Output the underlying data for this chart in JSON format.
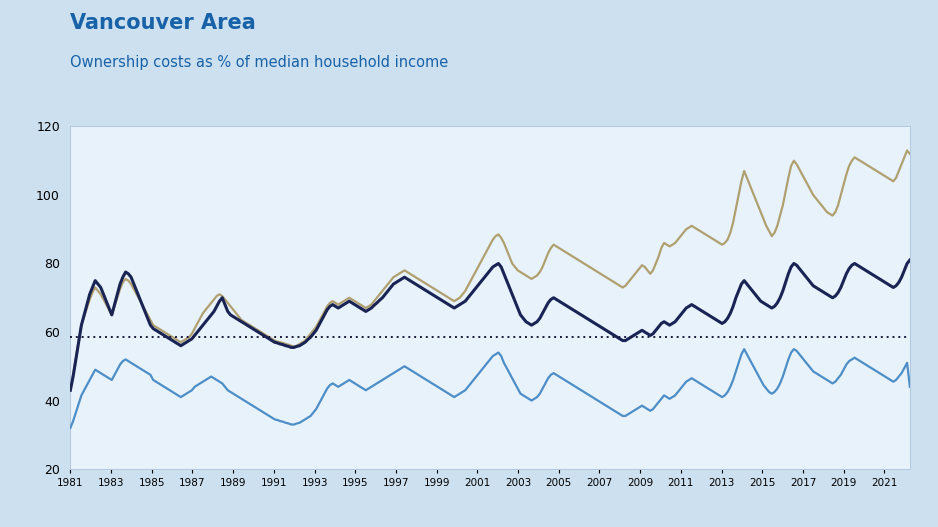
{
  "title": "Vancouver Area",
  "subtitle": "Ownership costs as % of median household income",
  "title_color": "#1862a8",
  "subtitle_color": "#1862a8",
  "fig_bg_color": "#cce0f0",
  "plot_bg_color": "#e8f2fb",
  "xmin": 1981.0,
  "xmax": 2022.25,
  "ymin": 20,
  "ymax": 120,
  "yticks": [
    20,
    40,
    60,
    80,
    100,
    120
  ],
  "reference_line": 58.5,
  "reference_color": "#1a1a3a",
  "line_navy_color": "#1a2454",
  "line_tan_color": "#b0a070",
  "line_blue_color": "#4d8ec7",
  "navy_lw": 2.2,
  "tan_lw": 1.6,
  "blue_lw": 1.6,
  "navy_data": [
    43.0,
    47.0,
    52.0,
    57.0,
    62.0,
    65.0,
    68.0,
    71.0,
    73.0,
    75.0,
    74.0,
    73.0,
    71.0,
    69.0,
    67.0,
    65.0,
    68.0,
    71.0,
    74.0,
    76.0,
    77.5,
    77.0,
    76.0,
    74.0,
    72.0,
    70.0,
    68.0,
    66.0,
    64.0,
    62.0,
    61.0,
    60.5,
    60.0,
    59.5,
    59.0,
    58.5,
    58.0,
    57.5,
    57.0,
    56.5,
    56.0,
    56.5,
    57.0,
    57.5,
    58.0,
    59.0,
    60.0,
    61.0,
    62.0,
    63.0,
    64.0,
    65.0,
    66.0,
    67.5,
    69.0,
    70.0,
    68.0,
    66.0,
    65.0,
    64.5,
    64.0,
    63.5,
    63.0,
    62.5,
    62.0,
    61.5,
    61.0,
    60.5,
    60.0,
    59.5,
    59.0,
    58.5,
    58.0,
    57.5,
    57.0,
    56.8,
    56.5,
    56.3,
    56.0,
    55.8,
    55.5,
    55.5,
    55.8,
    56.0,
    56.5,
    57.0,
    57.8,
    58.5,
    59.5,
    60.5,
    62.0,
    63.5,
    65.0,
    66.5,
    67.5,
    68.0,
    67.5,
    67.0,
    67.5,
    68.0,
    68.5,
    69.0,
    68.5,
    68.0,
    67.5,
    67.0,
    66.5,
    66.0,
    66.5,
    67.0,
    67.8,
    68.5,
    69.3,
    70.0,
    71.0,
    72.0,
    73.0,
    74.0,
    74.5,
    75.0,
    75.5,
    76.0,
    75.5,
    75.0,
    74.5,
    74.0,
    73.5,
    73.0,
    72.5,
    72.0,
    71.5,
    71.0,
    70.5,
    70.0,
    69.5,
    69.0,
    68.5,
    68.0,
    67.5,
    67.0,
    67.5,
    68.0,
    68.5,
    69.0,
    70.0,
    71.0,
    72.0,
    73.0,
    74.0,
    75.0,
    76.0,
    77.0,
    78.0,
    79.0,
    79.5,
    80.0,
    79.0,
    77.0,
    75.0,
    73.0,
    71.0,
    69.0,
    67.0,
    65.0,
    64.0,
    63.0,
    62.5,
    62.0,
    62.5,
    63.0,
    64.0,
    65.5,
    67.0,
    68.5,
    69.5,
    70.0,
    69.5,
    69.0,
    68.5,
    68.0,
    67.5,
    67.0,
    66.5,
    66.0,
    65.5,
    65.0,
    64.5,
    64.0,
    63.5,
    63.0,
    62.5,
    62.0,
    61.5,
    61.0,
    60.5,
    60.0,
    59.5,
    59.0,
    58.5,
    58.0,
    57.5,
    57.5,
    58.0,
    58.5,
    59.0,
    59.5,
    60.0,
    60.5,
    60.0,
    59.5,
    59.0,
    59.5,
    60.5,
    61.5,
    62.5,
    63.0,
    62.5,
    62.0,
    62.5,
    63.0,
    64.0,
    65.0,
    66.0,
    67.0,
    67.5,
    68.0,
    67.5,
    67.0,
    66.5,
    66.0,
    65.5,
    65.0,
    64.5,
    64.0,
    63.5,
    63.0,
    62.5,
    63.0,
    64.0,
    65.5,
    67.5,
    70.0,
    72.0,
    74.0,
    75.0,
    74.0,
    73.0,
    72.0,
    71.0,
    70.0,
    69.0,
    68.5,
    68.0,
    67.5,
    67.0,
    67.5,
    68.5,
    70.0,
    72.0,
    74.5,
    77.0,
    79.0,
    80.0,
    79.5,
    78.5,
    77.5,
    76.5,
    75.5,
    74.5,
    73.5,
    73.0,
    72.5,
    72.0,
    71.5,
    71.0,
    70.5,
    70.0,
    70.5,
    71.5,
    73.0,
    75.0,
    77.0,
    78.5,
    79.5,
    80.0,
    79.5,
    79.0,
    78.5,
    78.0,
    77.5,
    77.0,
    76.5,
    76.0,
    75.5,
    75.0,
    74.5,
    74.0,
    73.5,
    73.0,
    73.5,
    74.5,
    76.0,
    78.0,
    80.0,
    81.0
  ],
  "tan_data": [
    43.5,
    47.5,
    52.5,
    57.5,
    62.0,
    64.5,
    67.0,
    69.5,
    71.5,
    73.0,
    72.0,
    71.0,
    69.5,
    68.0,
    66.5,
    65.0,
    67.5,
    70.0,
    72.5,
    74.5,
    75.5,
    75.0,
    74.0,
    72.5,
    71.0,
    69.5,
    68.0,
    66.5,
    65.0,
    63.5,
    62.0,
    61.5,
    61.0,
    60.5,
    60.0,
    59.5,
    59.0,
    58.5,
    58.0,
    57.5,
    57.0,
    57.5,
    58.0,
    58.5,
    59.5,
    61.0,
    62.5,
    64.0,
    65.5,
    66.5,
    67.5,
    68.5,
    69.5,
    70.5,
    71.0,
    70.5,
    69.5,
    68.5,
    67.5,
    66.5,
    65.5,
    64.5,
    63.5,
    63.0,
    62.5,
    62.0,
    61.5,
    61.0,
    60.5,
    60.0,
    59.5,
    59.0,
    58.5,
    58.0,
    57.5,
    57.2,
    57.0,
    56.8,
    56.5,
    56.3,
    56.0,
    55.8,
    56.0,
    56.5,
    57.0,
    57.5,
    58.5,
    59.5,
    60.5,
    61.5,
    63.0,
    64.5,
    66.0,
    67.5,
    68.5,
    69.0,
    68.5,
    68.0,
    68.5,
    69.0,
    69.5,
    70.0,
    69.5,
    69.0,
    68.5,
    68.0,
    67.5,
    67.0,
    67.5,
    68.0,
    69.0,
    70.0,
    71.0,
    72.0,
    73.0,
    74.0,
    75.0,
    76.0,
    76.5,
    77.0,
    77.5,
    78.0,
    77.5,
    77.0,
    76.5,
    76.0,
    75.5,
    75.0,
    74.5,
    74.0,
    73.5,
    73.0,
    72.5,
    72.0,
    71.5,
    71.0,
    70.5,
    70.0,
    69.5,
    69.0,
    69.5,
    70.0,
    71.0,
    72.0,
    73.5,
    75.0,
    76.5,
    78.0,
    79.5,
    81.0,
    82.5,
    84.0,
    85.5,
    87.0,
    88.0,
    88.5,
    87.5,
    86.0,
    84.0,
    82.0,
    80.0,
    79.0,
    78.0,
    77.5,
    77.0,
    76.5,
    76.0,
    75.5,
    76.0,
    76.5,
    77.5,
    79.0,
    81.0,
    83.0,
    84.5,
    85.5,
    85.0,
    84.5,
    84.0,
    83.5,
    83.0,
    82.5,
    82.0,
    81.5,
    81.0,
    80.5,
    80.0,
    79.5,
    79.0,
    78.5,
    78.0,
    77.5,
    77.0,
    76.5,
    76.0,
    75.5,
    75.0,
    74.5,
    74.0,
    73.5,
    73.0,
    73.5,
    74.5,
    75.5,
    76.5,
    77.5,
    78.5,
    79.5,
    79.0,
    78.0,
    77.0,
    78.0,
    80.0,
    82.0,
    84.5,
    86.0,
    85.5,
    85.0,
    85.5,
    86.0,
    87.0,
    88.0,
    89.0,
    90.0,
    90.5,
    91.0,
    90.5,
    90.0,
    89.5,
    89.0,
    88.5,
    88.0,
    87.5,
    87.0,
    86.5,
    86.0,
    85.5,
    86.0,
    87.0,
    89.0,
    92.0,
    96.0,
    100.0,
    104.0,
    107.0,
    105.0,
    103.0,
    101.0,
    99.0,
    97.0,
    95.0,
    93.0,
    91.0,
    89.5,
    88.0,
    89.0,
    91.0,
    94.0,
    97.0,
    101.0,
    105.0,
    108.5,
    110.0,
    109.0,
    107.5,
    106.0,
    104.5,
    103.0,
    101.5,
    100.0,
    99.0,
    98.0,
    97.0,
    96.0,
    95.0,
    94.5,
    94.0,
    95.0,
    97.0,
    100.0,
    103.0,
    106.0,
    108.5,
    110.0,
    111.0,
    110.5,
    110.0,
    109.5,
    109.0,
    108.5,
    108.0,
    107.5,
    107.0,
    106.5,
    106.0,
    105.5,
    105.0,
    104.5,
    104.0,
    105.0,
    107.0,
    109.0,
    111.0,
    113.0,
    112.0
  ],
  "blue_data": [
    32.0,
    34.0,
    36.5,
    39.0,
    41.5,
    43.0,
    44.5,
    46.0,
    47.5,
    49.0,
    48.5,
    48.0,
    47.5,
    47.0,
    46.5,
    46.0,
    47.5,
    49.0,
    50.5,
    51.5,
    52.0,
    51.5,
    51.0,
    50.5,
    50.0,
    49.5,
    49.0,
    48.5,
    48.0,
    47.5,
    46.0,
    45.5,
    45.0,
    44.5,
    44.0,
    43.5,
    43.0,
    42.5,
    42.0,
    41.5,
    41.0,
    41.5,
    42.0,
    42.5,
    43.0,
    44.0,
    44.5,
    45.0,
    45.5,
    46.0,
    46.5,
    47.0,
    46.5,
    46.0,
    45.5,
    45.0,
    44.0,
    43.0,
    42.5,
    42.0,
    41.5,
    41.0,
    40.5,
    40.0,
    39.5,
    39.0,
    38.5,
    38.0,
    37.5,
    37.0,
    36.5,
    36.0,
    35.5,
    35.0,
    34.5,
    34.3,
    34.0,
    33.8,
    33.5,
    33.3,
    33.0,
    33.0,
    33.3,
    33.5,
    34.0,
    34.5,
    35.0,
    35.5,
    36.5,
    37.5,
    39.0,
    40.5,
    42.0,
    43.5,
    44.5,
    45.0,
    44.5,
    44.0,
    44.5,
    45.0,
    45.5,
    46.0,
    45.5,
    45.0,
    44.5,
    44.0,
    43.5,
    43.0,
    43.5,
    44.0,
    44.5,
    45.0,
    45.5,
    46.0,
    46.5,
    47.0,
    47.5,
    48.0,
    48.5,
    49.0,
    49.5,
    50.0,
    49.5,
    49.0,
    48.5,
    48.0,
    47.5,
    47.0,
    46.5,
    46.0,
    45.5,
    45.0,
    44.5,
    44.0,
    43.5,
    43.0,
    42.5,
    42.0,
    41.5,
    41.0,
    41.5,
    42.0,
    42.5,
    43.0,
    44.0,
    45.0,
    46.0,
    47.0,
    48.0,
    49.0,
    50.0,
    51.0,
    52.0,
    53.0,
    53.5,
    54.0,
    53.0,
    51.0,
    49.5,
    48.0,
    46.5,
    45.0,
    43.5,
    42.0,
    41.5,
    41.0,
    40.5,
    40.0,
    40.5,
    41.0,
    42.0,
    43.5,
    45.0,
    46.5,
    47.5,
    48.0,
    47.5,
    47.0,
    46.5,
    46.0,
    45.5,
    45.0,
    44.5,
    44.0,
    43.5,
    43.0,
    42.5,
    42.0,
    41.5,
    41.0,
    40.5,
    40.0,
    39.5,
    39.0,
    38.5,
    38.0,
    37.5,
    37.0,
    36.5,
    36.0,
    35.5,
    35.5,
    36.0,
    36.5,
    37.0,
    37.5,
    38.0,
    38.5,
    38.0,
    37.5,
    37.0,
    37.5,
    38.5,
    39.5,
    40.5,
    41.5,
    41.0,
    40.5,
    41.0,
    41.5,
    42.5,
    43.5,
    44.5,
    45.5,
    46.0,
    46.5,
    46.0,
    45.5,
    45.0,
    44.5,
    44.0,
    43.5,
    43.0,
    42.5,
    42.0,
    41.5,
    41.0,
    41.5,
    42.5,
    44.0,
    46.0,
    48.5,
    51.0,
    53.5,
    55.0,
    53.5,
    52.0,
    50.5,
    49.0,
    47.5,
    46.0,
    44.5,
    43.5,
    42.5,
    42.0,
    42.5,
    43.5,
    45.0,
    47.0,
    49.5,
    52.0,
    54.0,
    55.0,
    54.5,
    53.5,
    52.5,
    51.5,
    50.5,
    49.5,
    48.5,
    48.0,
    47.5,
    47.0,
    46.5,
    46.0,
    45.5,
    45.0,
    45.5,
    46.5,
    47.5,
    49.0,
    50.5,
    51.5,
    52.0,
    52.5,
    52.0,
    51.5,
    51.0,
    50.5,
    50.0,
    49.5,
    49.0,
    48.5,
    48.0,
    47.5,
    47.0,
    46.5,
    46.0,
    45.5,
    46.0,
    47.0,
    48.0,
    49.5,
    51.0,
    44.0
  ]
}
